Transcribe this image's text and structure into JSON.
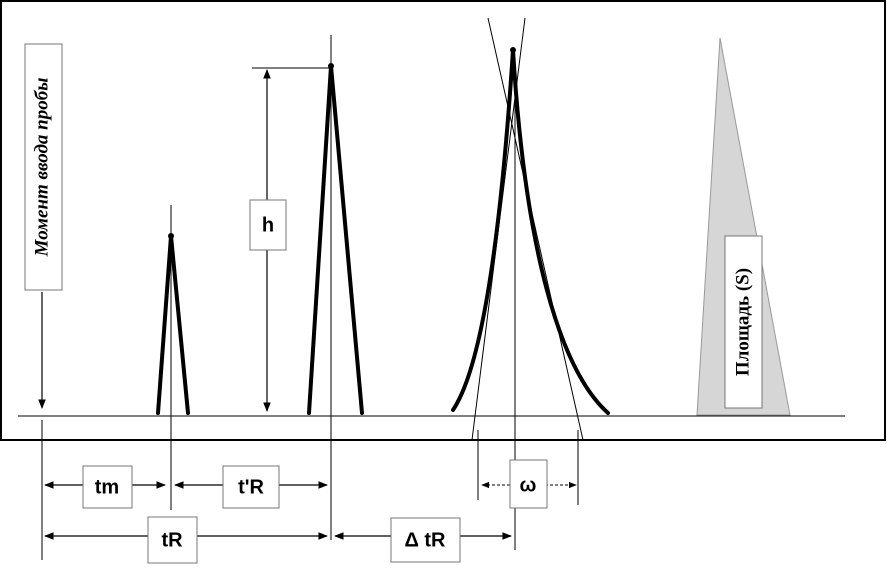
{
  "labels": {
    "injection": "Момент ввода пробы",
    "height": "h",
    "area": "Площадь (S)",
    "tm": "tm",
    "t_prime_r": "t'R",
    "omega": "ω",
    "tr": "tR",
    "delta_tr": "Δ tR"
  }
}
